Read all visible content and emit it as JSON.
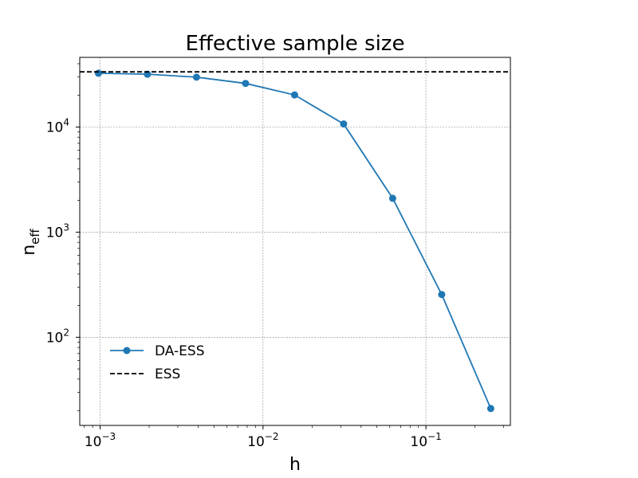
{
  "chart_data": {
    "type": "line",
    "title": "Effective sample size",
    "xlabel": "h",
    "ylabel": {
      "base": "n",
      "subscript": "eff"
    },
    "xscale": "log",
    "yscale": "log",
    "xlim": [
      0.00075,
      0.33
    ],
    "ylim": [
      14.5,
      46000
    ],
    "grid": true,
    "legend_position": "lower-left",
    "x_ticks": [
      {
        "value": 0.001,
        "base": "10",
        "exp": "−3"
      },
      {
        "value": 0.01,
        "base": "10",
        "exp": "−2"
      },
      {
        "value": 0.1,
        "base": "10",
        "exp": "−1"
      }
    ],
    "y_ticks": [
      {
        "value": 100,
        "base": "10",
        "exp": "2"
      },
      {
        "value": 1000,
        "base": "10",
        "exp": "3"
      },
      {
        "value": 10000,
        "base": "10",
        "exp": "4"
      }
    ],
    "series": [
      {
        "name": "DA-ESS",
        "color": "#1f77b4",
        "style": "solid-marker",
        "x": [
          0.0009765625,
          0.001953125,
          0.00390625,
          0.0078125,
          0.015625,
          0.03125,
          0.0625,
          0.125,
          0.25
        ],
        "y": [
          32500,
          31800,
          29800,
          26000,
          20200,
          10700,
          2100,
          255,
          21
        ]
      },
      {
        "name": "ESS",
        "color": "#000000",
        "style": "dashed",
        "x": [
          0.00075,
          0.33
        ],
        "y": [
          33500,
          33500
        ]
      }
    ]
  }
}
